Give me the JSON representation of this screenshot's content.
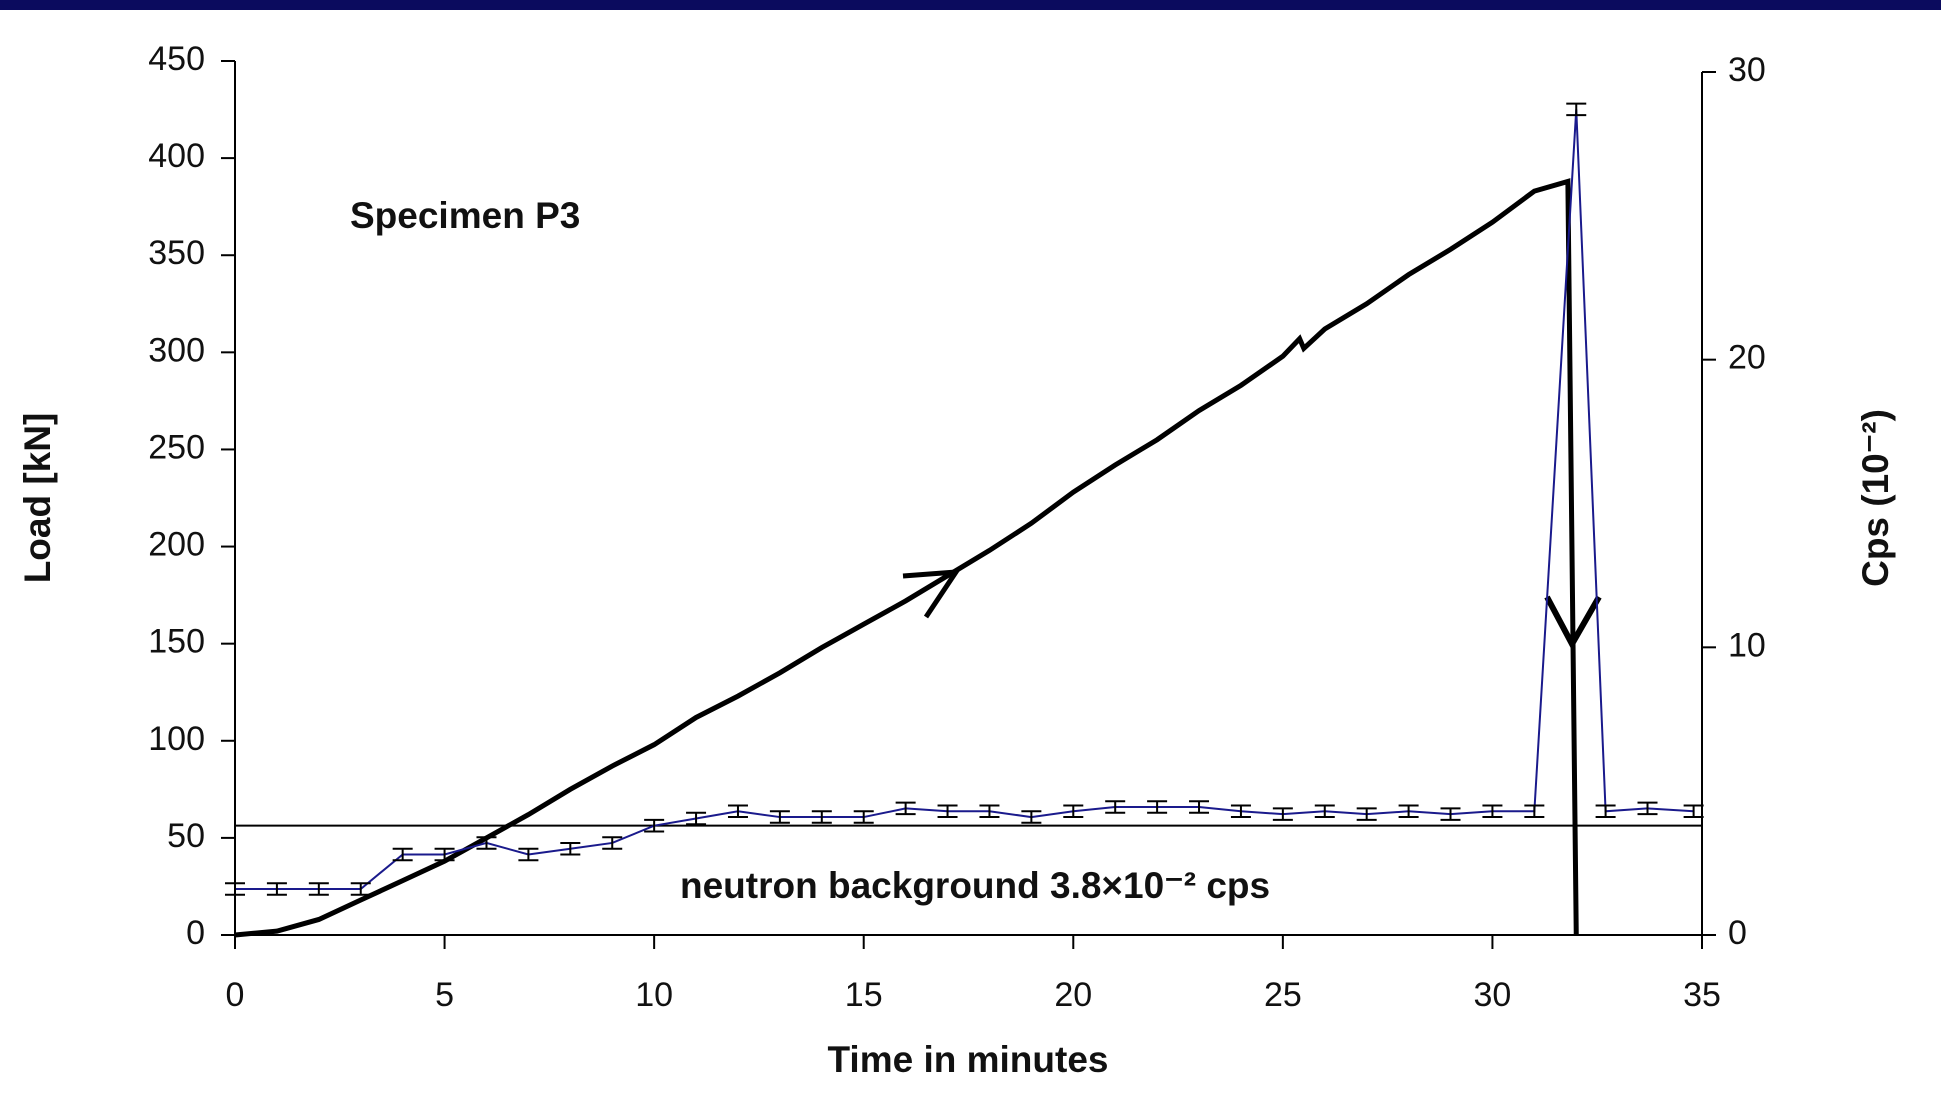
{
  "chart_data": {
    "type": "line",
    "annotations": [
      "Specimen P3"
    ],
    "xlabel": "Time in minutes",
    "ylabel": "Load [kN]",
    "y2label": "Cps (10⁻²)",
    "xlim": [
      0,
      35
    ],
    "xticks": [
      0,
      5,
      10,
      15,
      20,
      25,
      30,
      35
    ],
    "ylim": [
      0,
      450
    ],
    "yticks": [
      0,
      50,
      100,
      150,
      200,
      250,
      300,
      350,
      400,
      450
    ],
    "y2lim": [
      0,
      30
    ],
    "y2ticks": [
      0,
      10,
      20,
      30
    ],
    "grid": false,
    "reference_line": {
      "value": 3.8,
      "axis": "y2",
      "label": "neutron background 3.8×10⁻² cps"
    },
    "series": [
      {
        "name": "Load",
        "color": "#000000",
        "axis": "y",
        "x": [
          0,
          1,
          2,
          3,
          4,
          5,
          6,
          7,
          8,
          9,
          10,
          11,
          12,
          13,
          14,
          15,
          16,
          17,
          18,
          19,
          20,
          21,
          22,
          23,
          24,
          25,
          25.4,
          25.5,
          26,
          27,
          28,
          29,
          30,
          31,
          31.8,
          32
        ],
        "values": [
          0,
          2,
          8,
          18,
          28,
          38,
          50,
          62,
          75,
          87,
          98,
          112,
          123,
          135,
          148,
          160,
          172,
          185,
          198,
          212,
          228,
          242,
          255,
          270,
          283,
          298,
          307,
          302,
          312,
          325,
          340,
          353,
          367,
          383,
          388,
          0
        ]
      },
      {
        "name": "Cps",
        "color": "#1a1a8c",
        "axis": "y2",
        "x": [
          0,
          1,
          2,
          3,
          4,
          5,
          6,
          7,
          8,
          9,
          10,
          11,
          12,
          13,
          14,
          15,
          16,
          17,
          18,
          19,
          20,
          21,
          22,
          23,
          24,
          25,
          26,
          27,
          28,
          29,
          30,
          31,
          32,
          32.7,
          33.7,
          34.8
        ],
        "values": [
          1.6,
          1.6,
          1.6,
          1.6,
          2.8,
          2.8,
          3.2,
          2.8,
          3.0,
          3.2,
          3.8,
          4.05,
          4.3,
          4.1,
          4.1,
          4.1,
          4.4,
          4.3,
          4.3,
          4.1,
          4.3,
          4.45,
          4.45,
          4.45,
          4.3,
          4.2,
          4.3,
          4.2,
          4.3,
          4.2,
          4.3,
          4.3,
          28.7,
          4.3,
          4.4,
          4.3
        ],
        "errors": [
          0.2,
          0.2,
          0.2,
          0.2,
          0.2,
          0.2,
          0.2,
          0.2,
          0.2,
          0.2,
          0.2,
          0.2,
          0.2,
          0.2,
          0.2,
          0.2,
          0.2,
          0.2,
          0.2,
          0.2,
          0.2,
          0.2,
          0.2,
          0.2,
          0.2,
          0.2,
          0.2,
          0.2,
          0.2,
          0.2,
          0.2,
          0.2,
          0.2,
          0.2,
          0.2,
          0.2
        ]
      }
    ]
  }
}
